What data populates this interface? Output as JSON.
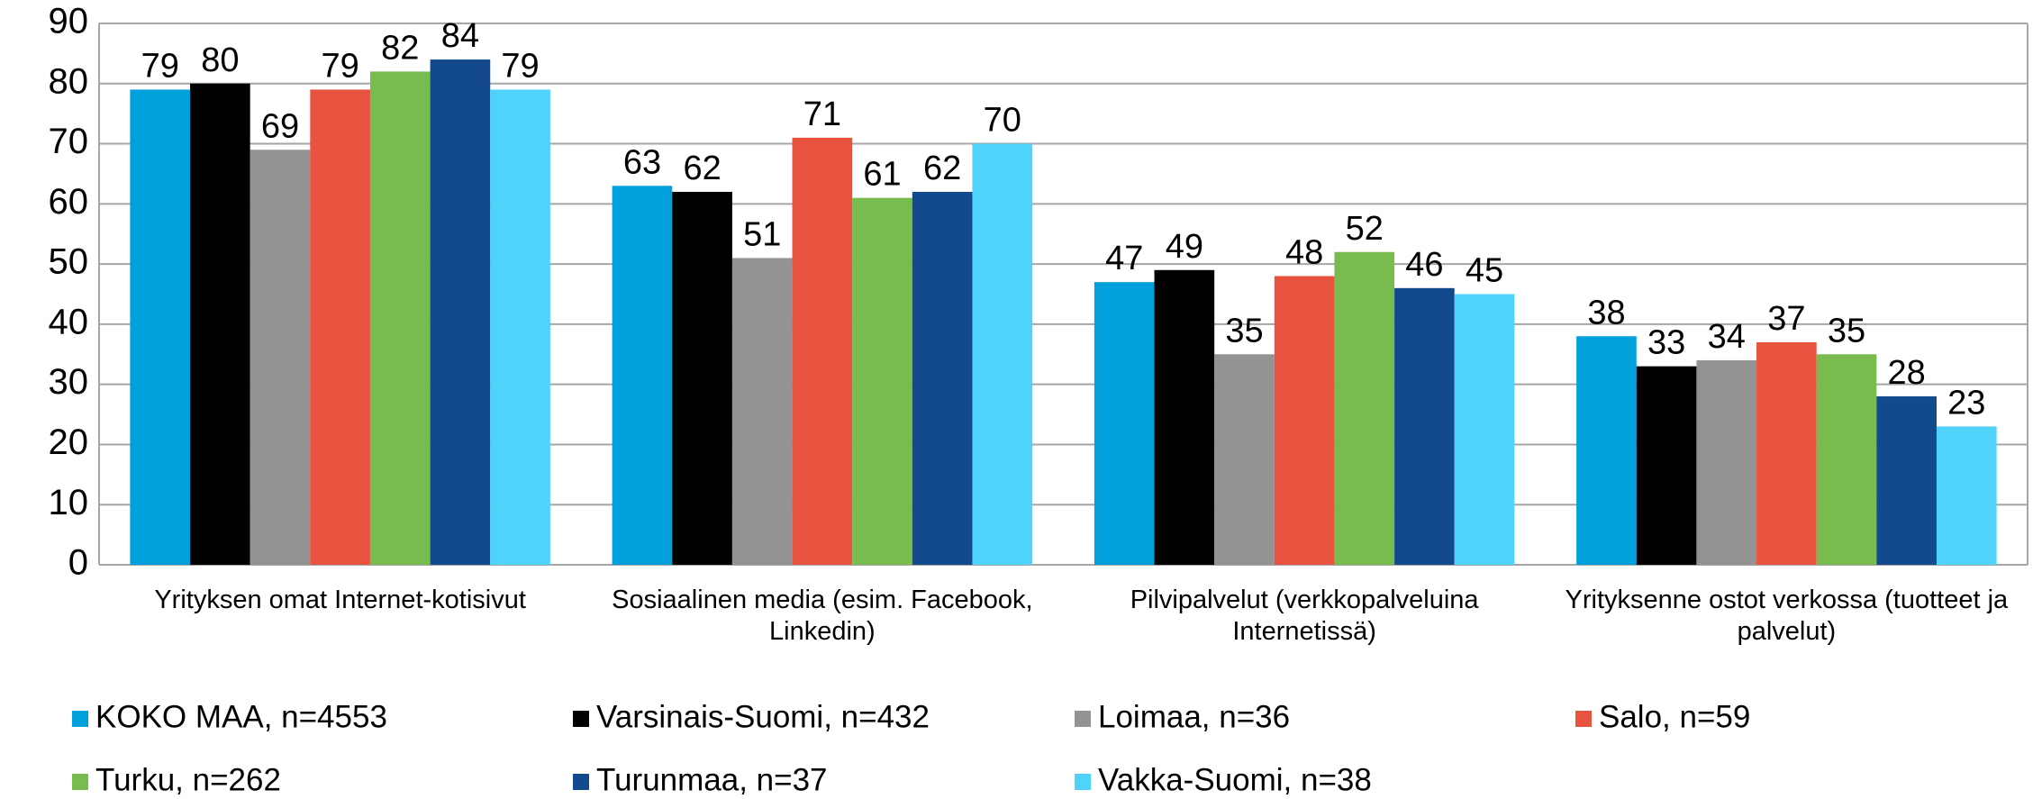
{
  "chart_data": {
    "type": "bar",
    "categories": [
      "Yrityksen omat Internet-kotisivut",
      "Sosiaalinen media (esim. Facebook, Linkedin)",
      "Pilvipalvelut  (verkkopalveluina Internetissä)",
      "Yrityksenne ostot verkossa (tuotteet ja palvelut)"
    ],
    "series": [
      {
        "name": "KOKO MAA, n=4553",
        "color": "#00a0dc",
        "values": [
          79,
          63,
          47,
          38
        ]
      },
      {
        "name": "Varsinais-Suomi, n=432",
        "color": "#000000",
        "values": [
          80,
          62,
          49,
          33
        ]
      },
      {
        "name": "Loimaa, n=36",
        "color": "#939393",
        "values": [
          69,
          51,
          35,
          34
        ]
      },
      {
        "name": "Salo, n=59",
        "color": "#e8533f",
        "values": [
          79,
          71,
          48,
          37
        ]
      },
      {
        "name": "Turku, n=262",
        "color": "#78bc50",
        "values": [
          82,
          61,
          52,
          35
        ]
      },
      {
        "name": "Turunmaa, n=37",
        "color": "#134a8e",
        "values": [
          84,
          62,
          46,
          28
        ]
      },
      {
        "name": "Vakka-Suomi, n=38",
        "color": "#4fd3fb",
        "values": [
          79,
          70,
          45,
          23
        ]
      }
    ],
    "ylim": [
      0,
      90
    ],
    "yticks": [
      0,
      10,
      20,
      30,
      40,
      50,
      60,
      70,
      80,
      90
    ],
    "grid": true,
    "legend": "bottom"
  }
}
